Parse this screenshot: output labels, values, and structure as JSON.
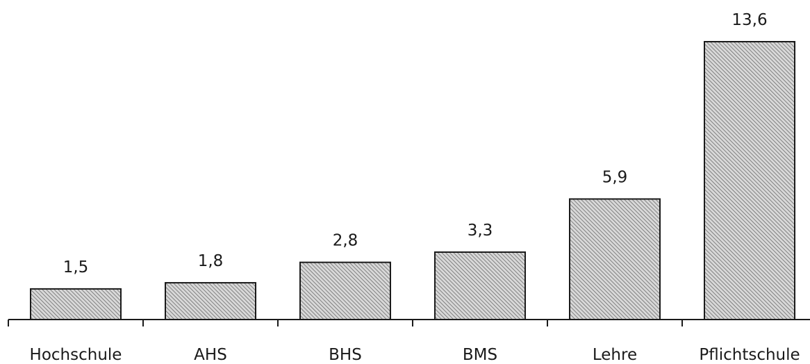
{
  "chart_data": {
    "type": "bar",
    "categories": [
      "Hochschule",
      "AHS",
      "BHS",
      "BMS",
      "Lehre",
      "Pflichtschule"
    ],
    "values": [
      1.5,
      1.8,
      2.8,
      3.3,
      5.9,
      13.6
    ],
    "value_labels": [
      "1,5",
      "1,8",
      "2,8",
      "3,3",
      "5,9",
      "13,6"
    ],
    "title": "",
    "xlabel": "",
    "ylabel": "",
    "ylim": [
      0,
      13.6
    ],
    "grid": false,
    "legend": "none",
    "bar_fill": "hatched-gray",
    "colors": {
      "bar_stroke": "#1a1a1a",
      "hatch_light": "#ffffff",
      "hatch_dark": "#6b6b6b"
    }
  }
}
